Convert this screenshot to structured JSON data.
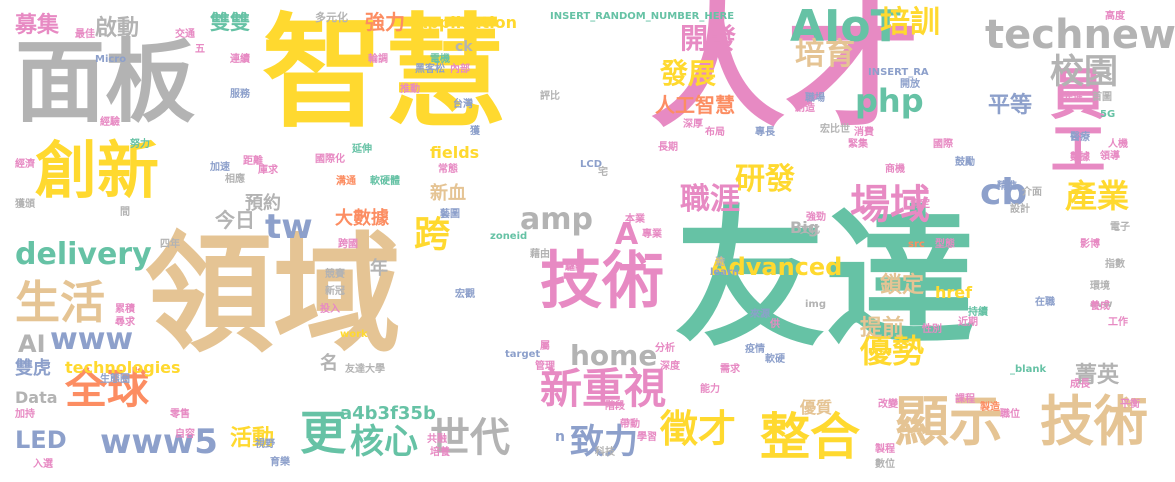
{
  "palette": [
    "#66c2a5",
    "#fc8d62",
    "#8da0cb",
    "#e78ac3",
    "#a6d854",
    "#ffd92f",
    "#e5c494",
    "#b3b3b3"
  ],
  "words": [
    {
      "text": "友達",
      "color": "#66c2a5"
    },
    {
      "text": "領域",
      "color": "#e5c494"
    },
    {
      "text": "智慧",
      "color": "#ffd92f"
    },
    {
      "text": "人才",
      "color": "#e78ac3"
    },
    {
      "text": "面板",
      "color": "#b3b3b3"
    },
    {
      "text": "技術",
      "color": "#e78ac3"
    },
    {
      "text": "創新",
      "color": "#ffd92f"
    },
    {
      "text": "員工",
      "color": "#e78ac3"
    },
    {
      "text": "顯示",
      "color": "#e5c494"
    },
    {
      "text": "技術",
      "color": "#e5c494"
    },
    {
      "text": "整合",
      "color": "#ffd92f"
    },
    {
      "text": "AIoT",
      "color": "#66c2a5"
    },
    {
      "text": "technews",
      "color": "#b3b3b3"
    },
    {
      "text": "場域",
      "color": "#e78ac3"
    },
    {
      "text": "生活",
      "color": "#e5c494"
    },
    {
      "text": "全球",
      "color": "#fc8d62"
    },
    {
      "text": "新重視",
      "color": "#e78ac3"
    },
    {
      "text": "世代",
      "color": "#b3b3b3"
    },
    {
      "text": "徵才",
      "color": "#ffd92f"
    },
    {
      "text": "delivery",
      "color": "#66c2a5"
    },
    {
      "text": "www5",
      "color": "#8da0cb"
    },
    {
      "text": "home",
      "color": "#b3b3b3"
    },
    {
      "text": "amp",
      "color": "#b3b3b3"
    },
    {
      "text": "cb",
      "color": "#8da0cb"
    },
    {
      "text": "tw",
      "color": "#8da0cb"
    },
    {
      "text": "php",
      "color": "#66c2a5"
    },
    {
      "text": "www",
      "color": "#8da0cb"
    },
    {
      "text": "更",
      "color": "#66c2a5"
    },
    {
      "text": "核心",
      "color": "#66c2a5"
    },
    {
      "text": "致力",
      "color": "#8da0cb"
    },
    {
      "text": "優勢",
      "color": "#ffd92f"
    },
    {
      "text": "產業",
      "color": "#ffd92f"
    },
    {
      "text": "校園",
      "color": "#b3b3b3"
    },
    {
      "text": "開發",
      "color": "#e78ac3"
    },
    {
      "text": "發展",
      "color": "#ffd92f"
    },
    {
      "text": "培育",
      "color": "#e5c494"
    },
    {
      "text": "培訓",
      "color": "#ffd92f"
    },
    {
      "text": "研發",
      "color": "#ffd92f"
    },
    {
      "text": "職涯",
      "color": "#e78ac3"
    },
    {
      "text": "跨",
      "color": "#ffd92f"
    },
    {
      "text": "A",
      "color": "#e78ac3"
    },
    {
      "text": "Advanced",
      "color": "#ffd92f"
    },
    {
      "text": "LED",
      "color": "#8da0cb"
    },
    {
      "text": "AI",
      "color": "#b3b3b3"
    },
    {
      "text": "啟動",
      "color": "#b3b3b3"
    },
    {
      "text": "募集",
      "color": "#e78ac3"
    },
    {
      "text": "雙雙",
      "color": "#66c2a5"
    },
    {
      "text": "強力",
      "color": "#fc8d62"
    },
    {
      "text": "Application",
      "color": "#ffd92f"
    },
    {
      "text": "平等",
      "color": "#8da0cb"
    },
    {
      "text": "人工智慧",
      "color": "#fc8d62"
    },
    {
      "text": "菁英",
      "color": "#b3b3b3"
    },
    {
      "text": "鎖定",
      "color": "#e5c494"
    },
    {
      "text": "提前",
      "color": "#e5c494"
    },
    {
      "text": "活動",
      "color": "#ffd92f"
    },
    {
      "text": "a4b3f35b",
      "color": "#66c2a5"
    },
    {
      "text": "technologies",
      "color": "#ffd92f"
    },
    {
      "text": "Data",
      "color": "#b3b3b3"
    },
    {
      "text": "雙虎",
      "color": "#8da0cb"
    },
    {
      "text": "大數據",
      "color": "#fc8d62"
    },
    {
      "text": "今日",
      "color": "#b3b3b3"
    },
    {
      "text": "預約",
      "color": "#b3b3b3"
    },
    {
      "text": "新血",
      "color": "#e5c494"
    },
    {
      "text": "Big",
      "color": "#b3b3b3"
    },
    {
      "text": "href",
      "color": "#ffd92f"
    },
    {
      "text": "fields",
      "color": "#ffd92f"
    },
    {
      "text": "年",
      "color": "#b3b3b3"
    },
    {
      "text": "名",
      "color": "#b3b3b3"
    },
    {
      "text": "ck",
      "color": "#b3b3b3"
    },
    {
      "text": "優質",
      "color": "#e5c494"
    },
    {
      "text": "n",
      "color": "#8da0cb"
    },
    {
      "text": "多元化",
      "color": "#b3b3b3"
    },
    {
      "text": "INSERT_RANDOM_NUMBER_HERE",
      "color": "#66c2a5"
    },
    {
      "text": "INSERT_RA",
      "color": "#8da0cb"
    },
    {
      "text": "Micro",
      "color": "#8da0cb"
    },
    {
      "text": "LCD",
      "color": "#8da0cb"
    },
    {
      "text": "zoneid",
      "color": "#66c2a5"
    },
    {
      "text": "learn",
      "color": "#8da0cb"
    },
    {
      "text": "img",
      "color": "#b3b3b3"
    },
    {
      "text": "work",
      "color": "#ffd92f"
    },
    {
      "text": "target",
      "color": "#8da0cb"
    },
    {
      "text": "src",
      "color": "#fc8d62"
    },
    {
      "text": "avw",
      "color": "#b3b3b3"
    },
    {
      "text": "5G",
      "color": "#66c2a5"
    },
    {
      "text": "_blank",
      "color": "#66c2a5"
    },
    {
      "text": "高度",
      "color": "#e78ac3"
    },
    {
      "text": "交通",
      "color": "#e78ac3"
    },
    {
      "text": "最佳",
      "color": "#e78ac3"
    },
    {
      "text": "電機",
      "color": "#66c2a5"
    },
    {
      "text": "輪調",
      "color": "#e78ac3"
    },
    {
      "text": "黑客松",
      "color": "#8da0cb"
    },
    {
      "text": "內部",
      "color": "#e78ac3"
    },
    {
      "text": "推動",
      "color": "#e78ac3"
    },
    {
      "text": "台灣",
      "color": "#8da0cb"
    },
    {
      "text": "評比",
      "color": "#b3b3b3"
    },
    {
      "text": "連續",
      "color": "#e78ac3"
    },
    {
      "text": "服務",
      "color": "#8da0cb"
    },
    {
      "text": "經驗",
      "color": "#e78ac3"
    },
    {
      "text": "努力",
      "color": "#66c2a5"
    },
    {
      "text": "經濟",
      "color": "#e78ac3"
    },
    {
      "text": "國際化",
      "color": "#e78ac3"
    },
    {
      "text": "延伸",
      "color": "#66c2a5"
    },
    {
      "text": "距離",
      "color": "#e78ac3"
    },
    {
      "text": "庫求",
      "color": "#e78ac3"
    },
    {
      "text": "溝通",
      "color": "#fc8d62"
    },
    {
      "text": "軟硬體",
      "color": "#66c2a5"
    },
    {
      "text": "常態",
      "color": "#e78ac3"
    },
    {
      "text": "藝圖",
      "color": "#8da0cb"
    },
    {
      "text": "獲",
      "color": "#8da0cb"
    },
    {
      "text": "宅",
      "color": "#b3b3b3"
    },
    {
      "text": "長期",
      "color": "#e78ac3"
    },
    {
      "text": "布局",
      "color": "#e78ac3"
    },
    {
      "text": "深厚",
      "color": "#e78ac3"
    },
    {
      "text": "職場",
      "color": "#8da0cb"
    },
    {
      "text": "創造",
      "color": "#e78ac3"
    },
    {
      "text": "專長",
      "color": "#8da0cb"
    },
    {
      "text": "宏比世",
      "color": "#b3b3b3"
    },
    {
      "text": "消費",
      "color": "#e78ac3"
    },
    {
      "text": "緊集",
      "color": "#e78ac3"
    },
    {
      "text": "首圖",
      "color": "#b3b3b3"
    },
    {
      "text": "先進",
      "color": "#e78ac3"
    },
    {
      "text": "開放",
      "color": "#8da0cb"
    },
    {
      "text": "國際",
      "color": "#e78ac3"
    },
    {
      "text": "醫療",
      "color": "#8da0cb"
    },
    {
      "text": "人機",
      "color": "#e78ac3"
    },
    {
      "text": "數據",
      "color": "#e78ac3"
    },
    {
      "text": "領導",
      "color": "#e78ac3"
    },
    {
      "text": "鼓勵",
      "color": "#8da0cb"
    },
    {
      "text": "商機",
      "color": "#e78ac3"
    },
    {
      "text": "精進",
      "color": "#8da0cb"
    },
    {
      "text": "介面",
      "color": "#b3b3b3"
    },
    {
      "text": "設計",
      "color": "#b3b3b3"
    },
    {
      "text": "電子",
      "color": "#b3b3b3"
    },
    {
      "text": "影博",
      "color": "#e78ac3"
    },
    {
      "text": "指數",
      "color": "#b3b3b3"
    },
    {
      "text": "環境",
      "color": "#b3b3b3"
    },
    {
      "text": "養成",
      "color": "#e78ac3"
    },
    {
      "text": "工作",
      "color": "#e78ac3"
    },
    {
      "text": "成長",
      "color": "#e78ac3"
    },
    {
      "text": "平衡",
      "color": "#e78ac3"
    },
    {
      "text": "職位",
      "color": "#e78ac3"
    },
    {
      "text": "改變",
      "color": "#e78ac3"
    },
    {
      "text": "製造",
      "color": "#fc8d62"
    },
    {
      "text": "課程",
      "color": "#e78ac3"
    },
    {
      "text": "製程",
      "color": "#e78ac3"
    },
    {
      "text": "數位",
      "color": "#b3b3b3"
    },
    {
      "text": "持續",
      "color": "#66c2a5"
    },
    {
      "text": "在職",
      "color": "#8da0cb"
    },
    {
      "text": "近期",
      "color": "#e78ac3"
    },
    {
      "text": "性別",
      "color": "#e78ac3"
    },
    {
      "text": "來源",
      "color": "#8da0cb"
    },
    {
      "text": "需求",
      "color": "#e78ac3"
    },
    {
      "text": "軟硬",
      "color": "#8da0cb"
    },
    {
      "text": "疫情",
      "color": "#8da0cb"
    },
    {
      "text": "能力",
      "color": "#e78ac3"
    },
    {
      "text": "分析",
      "color": "#e78ac3"
    },
    {
      "text": "深度",
      "color": "#e78ac3"
    },
    {
      "text": "管理",
      "color": "#e78ac3"
    },
    {
      "text": "屬",
      "color": "#e78ac3"
    },
    {
      "text": "帶動",
      "color": "#e78ac3"
    },
    {
      "text": "階段",
      "color": "#e78ac3"
    },
    {
      "text": "學習",
      "color": "#e78ac3"
    },
    {
      "text": "共融",
      "color": "#e78ac3"
    },
    {
      "text": "培養",
      "color": "#e78ac3"
    },
    {
      "text": "科技",
      "color": "#b3b3b3"
    },
    {
      "text": "育樂",
      "color": "#8da0cb"
    },
    {
      "text": "視野",
      "color": "#8da0cb"
    },
    {
      "text": "零售",
      "color": "#e78ac3"
    },
    {
      "text": "自容",
      "color": "#e78ac3"
    },
    {
      "text": "加持",
      "color": "#e78ac3"
    },
    {
      "text": "入選",
      "color": "#e78ac3"
    },
    {
      "text": "生態圈",
      "color": "#8da0cb"
    },
    {
      "text": "友達大學",
      "color": "#b3b3b3"
    },
    {
      "text": "累積",
      "color": "#e78ac3"
    },
    {
      "text": "尋求",
      "color": "#e78ac3"
    },
    {
      "text": "投入",
      "color": "#e78ac3"
    },
    {
      "text": "新冠",
      "color": "#b3b3b3"
    },
    {
      "text": "競賽",
      "color": "#b3b3b3"
    },
    {
      "text": "跨國",
      "color": "#e78ac3"
    },
    {
      "text": "四年",
      "color": "#b3b3b3"
    },
    {
      "text": "獲頒",
      "color": "#b3b3b3"
    },
    {
      "text": "藉由",
      "color": "#b3b3b3"
    },
    {
      "text": "驅動",
      "color": "#e78ac3"
    },
    {
      "text": "宏觀",
      "color": "#8da0cb"
    },
    {
      "text": "本業",
      "color": "#e78ac3"
    },
    {
      "text": "專業",
      "color": "#e78ac3"
    },
    {
      "text": "文化",
      "color": "#b3b3b3"
    },
    {
      "text": "強勁",
      "color": "#e78ac3"
    },
    {
      "text": "肯定",
      "color": "#e78ac3"
    },
    {
      "text": "型態",
      "color": "#e78ac3"
    },
    {
      "text": "加速",
      "color": "#8da0cb"
    },
    {
      "text": "相應",
      "color": "#b3b3b3"
    },
    {
      "text": "間",
      "color": "#b3b3b3"
    },
    {
      "text": "五",
      "color": "#e78ac3"
    },
    {
      "text": "供",
      "color": "#e78ac3"
    },
    {
      "text": "途",
      "color": "#b3b3b3"
    }
  ]
}
